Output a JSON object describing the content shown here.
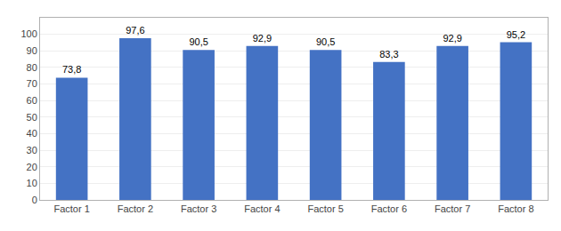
{
  "chart_data": {
    "type": "bar",
    "categories": [
      "Factor 1",
      "Factor 2",
      "Factor 3",
      "Factor 4",
      "Factor 5",
      "Factor 6",
      "Factor 7",
      "Factor 8"
    ],
    "values": [
      73.8,
      97.6,
      90.5,
      92.9,
      90.5,
      83.3,
      92.9,
      95.2
    ],
    "value_labels": [
      "73,8",
      "97,6",
      "90,5",
      "92,9",
      "90,5",
      "83,3",
      "92,9",
      "95,2"
    ],
    "data_labels": true,
    "color": "#4472C4",
    "ylim": [
      0,
      110
    ],
    "yticks": [
      0,
      10,
      20,
      30,
      40,
      50,
      60,
      70,
      80,
      90,
      100
    ],
    "grid": true
  }
}
